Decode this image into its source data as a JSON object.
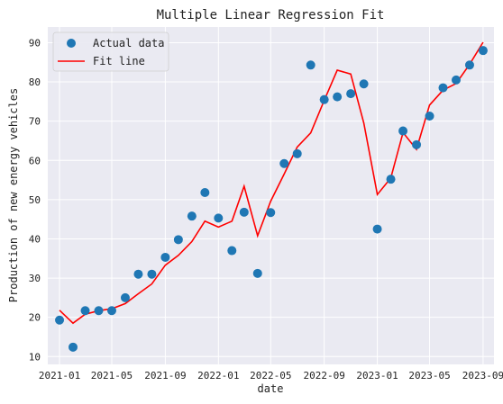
{
  "chart_data": {
    "type": "scatter",
    "title": "Multiple Linear Regression Fit",
    "xlabel": "date",
    "ylabel": "Production of new energy vehicles",
    "ylim": [
      8,
      94
    ],
    "xlim": [
      "2020-12-05",
      "2023-09-26"
    ],
    "x_ticks": [
      "2021-01",
      "2021-05",
      "2021-09",
      "2022-01",
      "2022-05",
      "2022-09",
      "2023-01",
      "2023-05",
      "2023-09"
    ],
    "y_ticks": [
      10,
      20,
      30,
      40,
      50,
      60,
      70,
      80,
      90
    ],
    "grid": true,
    "legend_position": "top-left",
    "x": [
      "2021-01",
      "2021-02",
      "2021-03",
      "2021-04",
      "2021-05",
      "2021-06",
      "2021-07",
      "2021-08",
      "2021-09",
      "2021-10",
      "2021-11",
      "2021-12",
      "2022-01",
      "2022-02",
      "2022-03",
      "2022-04",
      "2022-05",
      "2022-06",
      "2022-07",
      "2022-08",
      "2022-09",
      "2022-10",
      "2022-11",
      "2022-12",
      "2023-01",
      "2023-02",
      "2023-03",
      "2023-04",
      "2023-05",
      "2023-06",
      "2023-07",
      "2023-08",
      "2023-09"
    ],
    "series": [
      {
        "name": "Actual data",
        "kind": "scatter",
        "color": "#1f77b4",
        "values": [
          19.3,
          12.4,
          21.7,
          21.7,
          21.7,
          25.0,
          31.0,
          31.0,
          35.3,
          39.8,
          45.8,
          51.8,
          45.3,
          37.0,
          46.8,
          31.2,
          46.7,
          59.2,
          61.7,
          84.3,
          75.5,
          76.2,
          77.0,
          79.5,
          42.5,
          55.2,
          67.5,
          64.0,
          71.3,
          78.5,
          80.5,
          84.3,
          88.0
        ]
      },
      {
        "name": "Fit line",
        "kind": "line",
        "color": "#ff0000",
        "values": [
          21.8,
          18.5,
          20.8,
          21.7,
          22.2,
          23.5,
          26.0,
          28.5,
          33.3,
          35.8,
          39.3,
          44.5,
          43.0,
          44.5,
          53.4,
          40.8,
          49.6,
          56.5,
          63.4,
          67.0,
          75.3,
          83.0,
          82.0,
          69.5,
          51.3,
          55.5,
          67.1,
          62.8,
          74.1,
          77.9,
          79.6,
          84.5,
          90.1
        ]
      }
    ]
  }
}
